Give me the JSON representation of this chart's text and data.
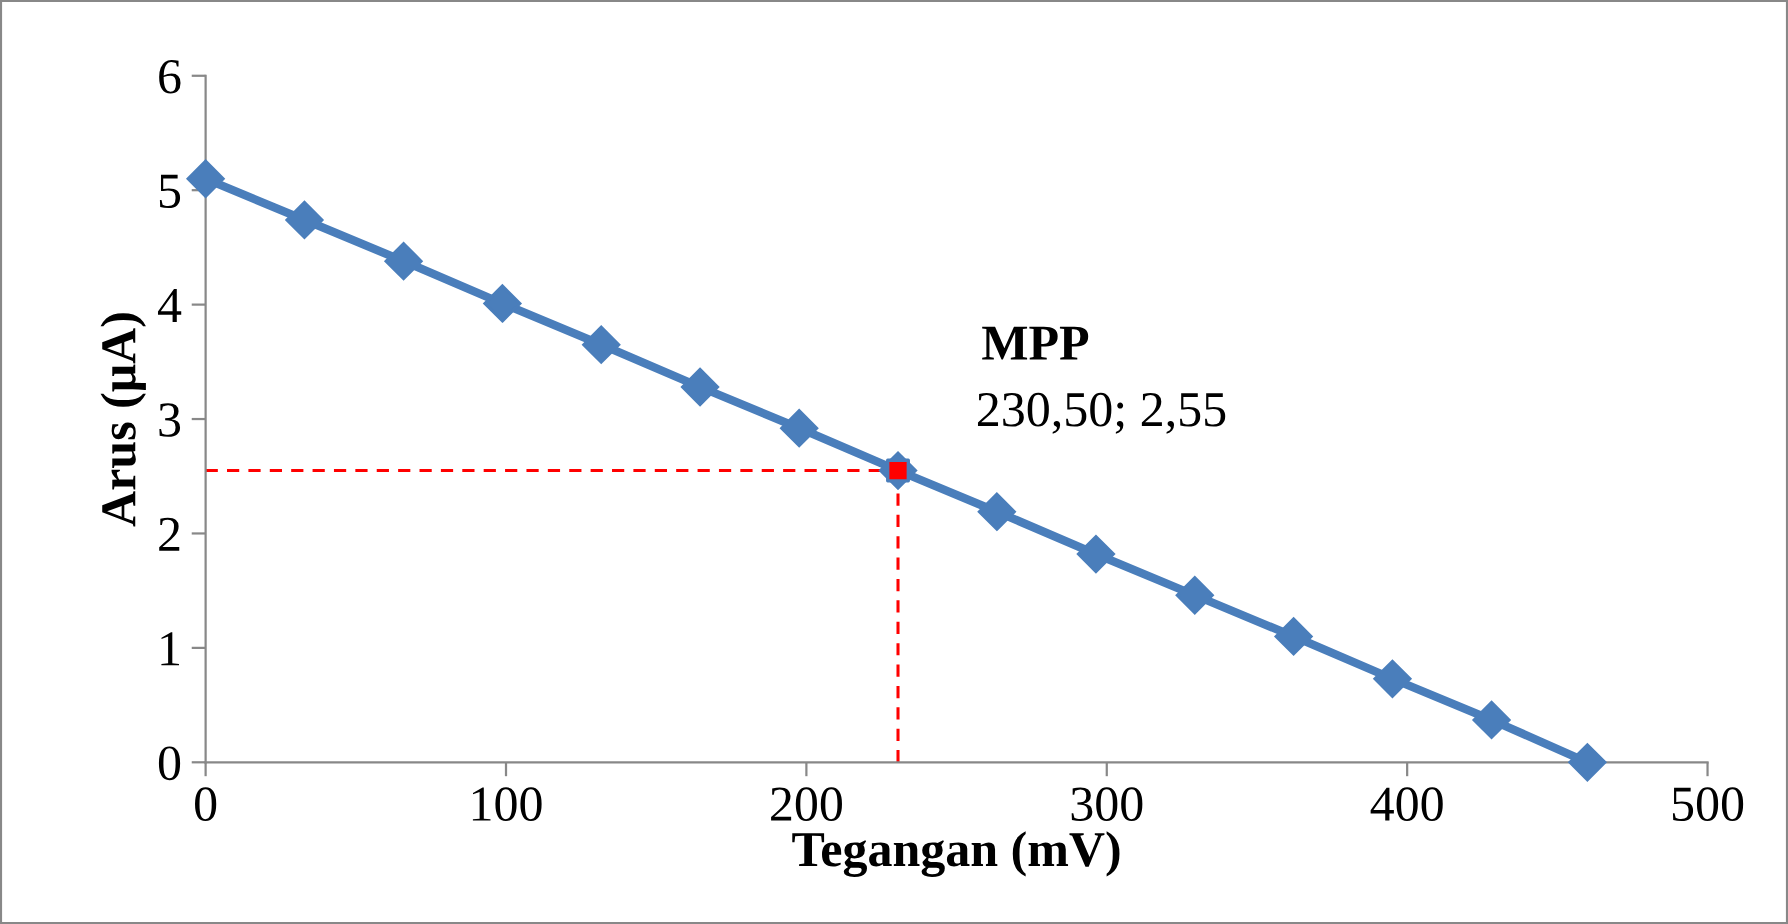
{
  "chart_data": {
    "type": "line",
    "xlabel": "Tegangan (mV)",
    "ylabel": "Arus (μA)",
    "x": [
      0,
      32.9,
      65.9,
      98.8,
      131.7,
      164.6,
      197.6,
      230.5,
      263.4,
      296.4,
      329.3,
      362.2,
      395.1,
      428.1,
      460
    ],
    "series": [
      {
        "color": "#4a7ebb",
        "marker": "diamond",
        "values": [
          5.1,
          4.74,
          4.38,
          4.01,
          3.65,
          3.28,
          2.92,
          2.55,
          2.19,
          1.82,
          1.46,
          1.1,
          0.73,
          0.37,
          0
        ]
      },
      {
        "type": "scatter",
        "color": "#ff0000",
        "marker": "square",
        "x": [
          230.5
        ],
        "values": [
          2.55
        ]
      }
    ],
    "ref_lines": [
      {
        "axis": "y",
        "value": 2.55,
        "color": "#ff0000",
        "line_style": "dashed"
      },
      {
        "axis": "x",
        "value": 230.5,
        "color": "#ff0000",
        "line_style": "dashed"
      }
    ],
    "annotations": [
      {
        "text": "MPP",
        "x": 230.5,
        "y": 2.55
      },
      {
        "text": "230,50; 2,55",
        "x": 230.5,
        "y": 2.55
      }
    ],
    "xlim": [
      0,
      500
    ],
    "xticks": [
      0,
      100,
      200,
      300,
      400,
      500
    ],
    "ylim": [
      0,
      6
    ],
    "yticks": [
      0,
      1,
      2,
      3,
      4,
      5,
      6
    ],
    "grid": false,
    "legend": false
  }
}
